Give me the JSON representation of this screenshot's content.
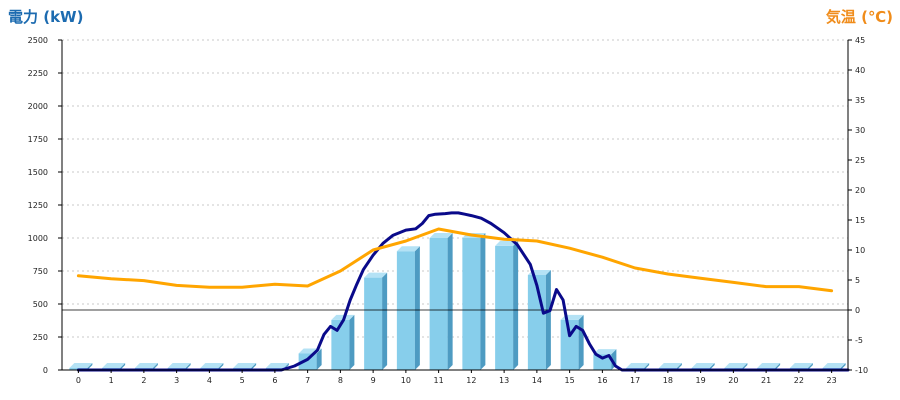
{
  "chart_data": {
    "type": "bar",
    "title": "",
    "left_axis": {
      "label": "電力 (kW)",
      "min": 0,
      "max": 2500,
      "step": 250,
      "ticks": [
        "0",
        "250",
        "500",
        "750",
        "1000",
        "1250",
        "1500",
        "1750",
        "2000",
        "2250",
        "2500"
      ]
    },
    "right_axis": {
      "label": "気温 (℃)",
      "min": -10,
      "max": 45,
      "step": 5,
      "ticks": [
        "-10",
        "-5",
        "0",
        "5",
        "10",
        "15",
        "20",
        "25",
        "30",
        "35",
        "40",
        "45"
      ]
    },
    "categories": [
      "0",
      "1",
      "2",
      "3",
      "4",
      "5",
      "6",
      "7",
      "8",
      "9",
      "10",
      "11",
      "12",
      "13",
      "14",
      "15",
      "16",
      "17",
      "18",
      "19",
      "20",
      "21",
      "22",
      "23"
    ],
    "grid": true,
    "series": [
      {
        "kind": "bar",
        "axis": "left",
        "color": "#87ceeb",
        "values": [
          15,
          15,
          15,
          15,
          15,
          15,
          15,
          125,
          380,
          700,
          900,
          1000,
          1000,
          940,
          720,
          380,
          120,
          15,
          15,
          15,
          15,
          15,
          15,
          15
        ]
      },
      {
        "kind": "line",
        "axis": "left",
        "color": "#0a0a8a",
        "x": [
          0,
          6.2,
          6.6,
          7.0,
          7.3,
          7.5,
          7.7,
          7.9,
          8.1,
          8.3,
          8.5,
          8.7,
          9.0,
          9.3,
          9.6,
          10.0,
          10.3,
          10.5,
          10.7,
          10.9,
          11.2,
          11.4,
          11.6,
          11.8,
          12.0,
          12.3,
          12.6,
          13.0,
          13.4,
          13.8,
          14.0,
          14.2,
          14.4,
          14.6,
          14.8,
          15.0,
          15.2,
          15.4,
          15.6,
          15.8,
          16.0,
          16.2,
          16.4,
          16.6,
          23.5
        ],
        "y": [
          0,
          0,
          30,
          80,
          150,
          270,
          330,
          300,
          380,
          530,
          650,
          760,
          870,
          960,
          1020,
          1060,
          1070,
          1110,
          1170,
          1180,
          1185,
          1190,
          1190,
          1180,
          1170,
          1150,
          1110,
          1040,
          950,
          800,
          640,
          430,
          450,
          610,
          530,
          260,
          330,
          300,
          200,
          120,
          90,
          110,
          30,
          0,
          0
        ]
      },
      {
        "kind": "line",
        "axis": "right",
        "color": "#ffa500",
        "x": [
          0,
          1,
          2,
          3,
          4,
          5,
          6,
          7,
          8,
          9,
          10,
          11,
          12,
          13,
          14,
          15,
          16,
          17,
          18,
          19,
          20,
          21,
          22,
          23
        ],
        "y": [
          5.7,
          5.2,
          4.9,
          4.1,
          3.8,
          3.8,
          4.3,
          4.0,
          6.5,
          10.0,
          11.5,
          13.5,
          12.5,
          11.8,
          11.5,
          10.3,
          8.8,
          7.0,
          6.0,
          5.3,
          4.6,
          3.9,
          3.9,
          3.2
        ]
      }
    ],
    "reference_line": {
      "axis": "right",
      "value": 0,
      "color": "#000000"
    }
  }
}
